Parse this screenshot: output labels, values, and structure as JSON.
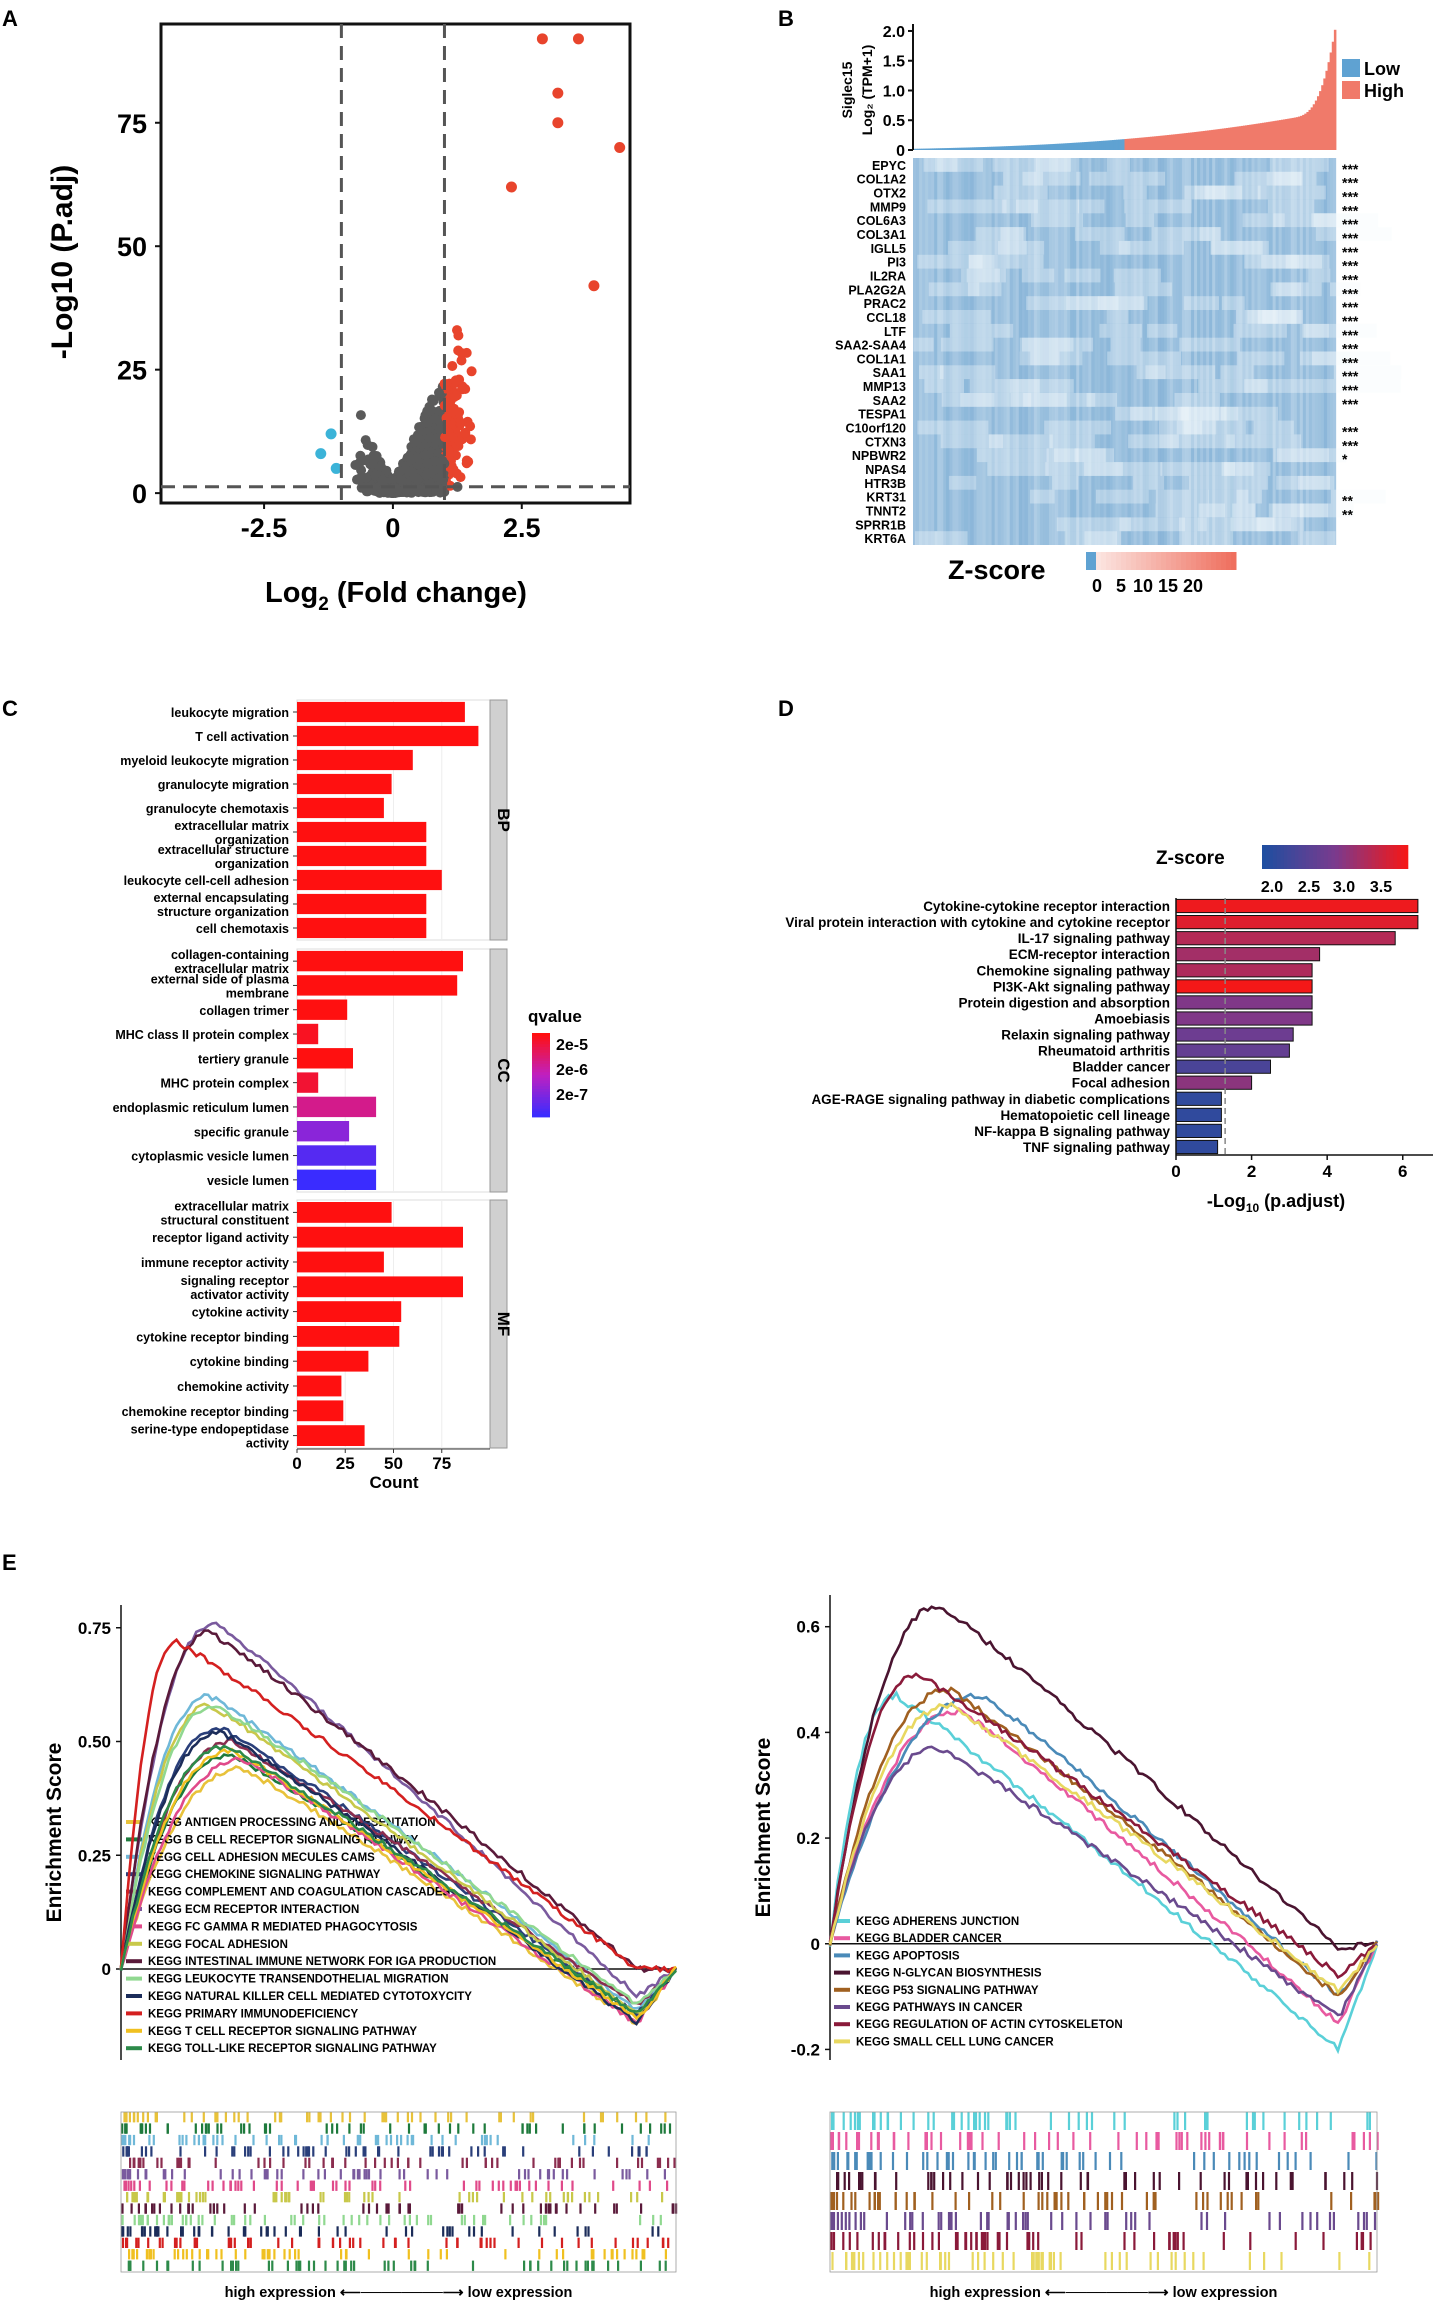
{
  "panel_labels": [
    "A",
    "B",
    "C",
    "D",
    "E"
  ],
  "colors": {
    "up": "#e8442c",
    "down": "#3bb3d8",
    "ns": "#5a5a5a",
    "low": "#5fa2d2",
    "high": "#f07a6a",
    "heat": "#8cb9da",
    "bar_red": "#f01414",
    "bar_blue": "#1a3d8a"
  },
  "chart_data": [
    {
      "id": "A",
      "type": "scatter",
      "title": "",
      "xlabel_main": "Log",
      "xlabel_sub": "2",
      "xlabel_rest": " (Fold change)",
      "ylabel": "-Log10 (P.adj)",
      "xlim": [
        -4.5,
        4.6
      ],
      "ylim": [
        -2,
        95
      ],
      "xticks": [
        -2.5,
        0,
        2.5
      ],
      "xtick_labels": [
        "-2.5",
        "0",
        "2.5"
      ],
      "yticks": [
        0,
        25,
        50,
        75
      ],
      "ytick_labels": [
        "0",
        "25",
        "50",
        "75"
      ],
      "thresholds": {
        "logfc": [
          -1,
          1
        ],
        "padj_line": 1.3
      },
      "highlight_points": [
        {
          "x": 2.9,
          "y": 92,
          "group": "up"
        },
        {
          "x": 3.6,
          "y": 92,
          "group": "up"
        },
        {
          "x": 3.2,
          "y": 81,
          "group": "up"
        },
        {
          "x": 3.2,
          "y": 75,
          "group": "up"
        },
        {
          "x": 4.4,
          "y": 70,
          "group": "up"
        },
        {
          "x": 2.3,
          "y": 62,
          "group": "up"
        },
        {
          "x": 3.9,
          "y": 42,
          "group": "up"
        },
        {
          "x": -1.2,
          "y": 12,
          "group": "down"
        },
        {
          "x": -1.4,
          "y": 8,
          "group": "down"
        },
        {
          "x": -1.1,
          "y": 5,
          "group": "down"
        }
      ]
    },
    {
      "id": "B",
      "type": "heatmap",
      "ylabel_line1": "Siglec15",
      "ylabel_line2": "Log₂ (TPM+1)",
      "yticks": [
        "0",
        "0.5",
        "1.0",
        "1.5",
        "2.0"
      ],
      "ytick_values": [
        0,
        0.5,
        1.0,
        1.5,
        2.0
      ],
      "legend": [
        "Low",
        "High"
      ],
      "genes": [
        "EPYC",
        "COL1A2",
        "OTX2",
        "MMP9",
        "COL6A3",
        "COL3A1",
        "IGLL5",
        "PI3",
        "IL2RA",
        "PLA2G2A",
        "PRAC2",
        "CCL18",
        "LTF",
        "SAA2-SAA4",
        "COL1A1",
        "SAA1",
        "MMP13",
        "SAA2",
        "TESPA1",
        "C10orf120",
        "CTXN3",
        "NPBWR2",
        "NPAS4",
        "HTR3B",
        "KRT31",
        "TNNT2",
        "SPRR1B",
        "KRT6A"
      ],
      "significance": [
        "***",
        "***",
        "***",
        "***",
        "***",
        "***",
        "***",
        "***",
        "***",
        "***",
        "***",
        "***",
        "***",
        "***",
        "***",
        "***",
        "***",
        "***",
        "",
        "***",
        "***",
        "*",
        "",
        "",
        "**",
        "**",
        "",
        ""
      ],
      "colorbar_title": "Z-score",
      "colorbar_ticks": [
        "0",
        "5",
        "10",
        "15",
        "20"
      ]
    },
    {
      "id": "C",
      "type": "bar",
      "xlabel": "Count",
      "xticks": [
        "0",
        "25",
        "50",
        "75"
      ],
      "xlim": [
        0,
        100
      ],
      "legend_title": "qvalue",
      "legend_ticks": [
        "2e-5",
        "2e-6",
        "2e-7"
      ],
      "facets": [
        {
          "name": "BP",
          "terms": [
            {
              "label": [
                "leukocyte migration"
              ],
              "count": 87,
              "q": 0.0
            },
            {
              "label": [
                "T cell activation"
              ],
              "count": 94,
              "q": 0.0
            },
            {
              "label": [
                "myeloid leukocyte migration"
              ],
              "count": 60,
              "q": 0.0
            },
            {
              "label": [
                "granulocyte migration"
              ],
              "count": 49,
              "q": 0.0
            },
            {
              "label": [
                "granulocyte chemotaxis"
              ],
              "count": 45,
              "q": 0.0
            },
            {
              "label": [
                "extracellular matrix",
                "organization"
              ],
              "count": 67,
              "q": 0.0
            },
            {
              "label": [
                "extracellular structure",
                "organization"
              ],
              "count": 67,
              "q": 0.0
            },
            {
              "label": [
                "leukocyte cell-cell adhesion"
              ],
              "count": 75,
              "q": 0.0
            },
            {
              "label": [
                "external encapsulating",
                "structure organization"
              ],
              "count": 67,
              "q": 0.0
            },
            {
              "label": [
                "cell chemotaxis"
              ],
              "count": 67,
              "q": 0.0
            }
          ]
        },
        {
          "name": "CC",
          "terms": [
            {
              "label": [
                "collagen-containing",
                "extracellular matrix"
              ],
              "count": 86,
              "q": 0.0
            },
            {
              "label": [
                "external side of plasma",
                "membrane"
              ],
              "count": 83,
              "q": 0.0
            },
            {
              "label": [
                "collagen trimer"
              ],
              "count": 26,
              "q": 0.0
            },
            {
              "label": [
                "MHC class II protein complex"
              ],
              "count": 11,
              "q": 0.05
            },
            {
              "label": [
                "tertiery granule"
              ],
              "count": 29,
              "q": 0.0
            },
            {
              "label": [
                "MHC protein complex"
              ],
              "count": 11,
              "q": 0.1
            },
            {
              "label": [
                "endoplasmic reticulum lumen"
              ],
              "count": 41,
              "q": 0.35
            },
            {
              "label": [
                "specific granule"
              ],
              "count": 27,
              "q": 0.7
            },
            {
              "label": [
                "cytoplasmic vesicle  lumen"
              ],
              "count": 41,
              "q": 0.9
            },
            {
              "label": [
                "vesicle lumen"
              ],
              "count": 41,
              "q": 1.0
            }
          ]
        },
        {
          "name": "MF",
          "terms": [
            {
              "label": [
                "extracellular matrix",
                "structural constituent"
              ],
              "count": 49,
              "q": 0.0
            },
            {
              "label": [
                "receptor ligand activity"
              ],
              "count": 86,
              "q": 0.0
            },
            {
              "label": [
                "immune receptor activity"
              ],
              "count": 45,
              "q": 0.0
            },
            {
              "label": [
                "signaling receptor",
                "activator activity"
              ],
              "count": 86,
              "q": 0.0
            },
            {
              "label": [
                "cytokine activity"
              ],
              "count": 54,
              "q": 0.0
            },
            {
              "label": [
                "cytokine receptor binding"
              ],
              "count": 53,
              "q": 0.0
            },
            {
              "label": [
                "cytokine binding"
              ],
              "count": 37,
              "q": 0.0
            },
            {
              "label": [
                "chemokine activity"
              ],
              "count": 23,
              "q": 0.0
            },
            {
              "label": [
                "chemokine receptor binding"
              ],
              "count": 24,
              "q": 0.0
            },
            {
              "label": [
                "serine-type endopeptidase",
                "activity"
              ],
              "count": 35,
              "q": 0.0
            }
          ]
        }
      ]
    },
    {
      "id": "D",
      "type": "bar",
      "xlabel_main": "-Log",
      "xlabel_sub": "10",
      "xlabel_rest": " (p.adjust)",
      "xticks": [
        "0",
        "2",
        "4",
        "6"
      ],
      "xlim": [
        0,
        6.8
      ],
      "threshold": 1.3,
      "colorbar_title": "Z-score",
      "colorbar_ticks": [
        "2.0",
        "2.5",
        "3.0",
        "3.5"
      ],
      "zlim": [
        1.8,
        3.9
      ],
      "terms": [
        {
          "label": "Cytokine-cytokine receptor interaction",
          "value": 6.4,
          "z": 3.85
        },
        {
          "label": "Viral protein interaction with cytokine and cytokine receptor",
          "value": 6.4,
          "z": 3.7
        },
        {
          "label": "IL-17 signaling pathway",
          "value": 5.8,
          "z": 3.35
        },
        {
          "label": "ECM-receptor interaction",
          "value": 3.8,
          "z": 3.2
        },
        {
          "label": "Chemokine signaling pathway",
          "value": 3.6,
          "z": 3.3
        },
        {
          "label": "PI3K-Akt signaling pathway",
          "value": 3.6,
          "z": 3.9
        },
        {
          "label": "Protein digestion and absorption",
          "value": 3.6,
          "z": 2.9
        },
        {
          "label": "Amoebiasis",
          "value": 3.6,
          "z": 2.9
        },
        {
          "label": "Relaxin signaling pathway",
          "value": 3.1,
          "z": 2.7
        },
        {
          "label": "Rheumatoid arthritis",
          "value": 3.0,
          "z": 2.6
        },
        {
          "label": "Bladder cancer",
          "value": 2.5,
          "z": 2.3
        },
        {
          "label": "Focal adhesion",
          "value": 2.0,
          "z": 3.0
        },
        {
          "label": "AGE-RAGE signaling pathway in diabetic complications",
          "value": 1.2,
          "z": 2.0
        },
        {
          "label": "Hematopoietic cell lineage",
          "value": 1.2,
          "z": 2.0
        },
        {
          "label": "NF-kappa B signaling pathway",
          "value": 1.2,
          "z": 2.0
        },
        {
          "label": "TNF signaling pathway",
          "value": 1.1,
          "z": 2.0
        }
      ]
    },
    {
      "id": "E-left",
      "type": "line",
      "ylabel": "Enrichment Score",
      "yticks": [
        "0",
        "0.25",
        "0.50",
        "0.75"
      ],
      "ytick_values": [
        0,
        0.25,
        0.5,
        0.75
      ],
      "ylim": [
        -0.2,
        0.8
      ],
      "axis_caption": "high expression ⟵────────⟶ low expression",
      "series": [
        {
          "name": "KEGG ANTIGEN PROCESSING AND PRESENTATION",
          "color": "#e8c23a",
          "peak": 0.44,
          "peakpos": 0.22,
          "min": -0.12
        },
        {
          "name": "KEGG B CELL RECEPTOR SIGNALING PATHWAY",
          "color": "#1e7a3c",
          "peak": 0.47,
          "peakpos": 0.2,
          "min": -0.1
        },
        {
          "name": "KEGG CELL ADHESION MECULES CAMS",
          "color": "#6fb8d8",
          "peak": 0.6,
          "peakpos": 0.16,
          "min": -0.09
        },
        {
          "name": "KEGG CHEMOKINE SIGNALING PATHWAY",
          "color": "#2a3f7a",
          "peak": 0.53,
          "peakpos": 0.18,
          "min": -0.1
        },
        {
          "name": "KEGG COMPLEMENT AND COAGULATION CASCADES",
          "color": "#8b2d4f",
          "peak": 0.5,
          "peakpos": 0.2,
          "min": -0.08
        },
        {
          "name": "KEGG ECM RECEPTOR INTERACTION",
          "color": "#7a5a9e",
          "peak": 0.76,
          "peakpos": 0.17,
          "min": -0.06
        },
        {
          "name": "KEGG FC GAMMA R MEDIATED PHAGOCYTOSIS",
          "color": "#e04a8a",
          "peak": 0.46,
          "peakpos": 0.22,
          "min": -0.12
        },
        {
          "name": "KEGG FOCAL ADHESION",
          "color": "#c8c84a",
          "peak": 0.58,
          "peakpos": 0.16,
          "min": -0.1
        },
        {
          "name": "KEGG INTESTINAL IMMUNE NETWORK FOR IGA PRODUCTION",
          "color": "#5a1a3a",
          "peak": 0.74,
          "peakpos": 0.16,
          "min": 0.0
        },
        {
          "name": "KEGG LEUKOCYTE TRANSENDOTHELIAL MIGRATION",
          "color": "#90d890",
          "peak": 0.58,
          "peakpos": 0.17,
          "min": -0.08
        },
        {
          "name": "KEGG NATURAL KILLER CELL MEDIATED CYTOTOXYCITY",
          "color": "#1c2d5a",
          "peak": 0.52,
          "peakpos": 0.18,
          "min": -0.12
        },
        {
          "name": "KEGG PRIMARY IMMUNODEFICIENCY",
          "color": "#d42020",
          "peak": 0.72,
          "peakpos": 0.1,
          "min": 0.0
        },
        {
          "name": "KEGG T CELL RECEPTOR SIGNALING PATHWAY",
          "color": "#f0c020",
          "peak": 0.48,
          "peakpos": 0.2,
          "min": -0.11
        },
        {
          "name": "KEGG TOLL-LIKE RECEPTOR SIGNALING PATHWAY",
          "color": "#2d8a4a",
          "peak": 0.49,
          "peakpos": 0.19,
          "min": -0.1
        }
      ]
    },
    {
      "id": "E-right",
      "type": "line",
      "ylabel": "Enrichment Score",
      "yticks": [
        "-0.2",
        "0",
        "0.2",
        "0.4",
        "0.6"
      ],
      "ytick_values": [
        -0.2,
        0,
        0.2,
        0.4,
        0.6
      ],
      "ylim": [
        -0.22,
        0.66
      ],
      "axis_caption": "high expression ⟵────────⟶ low expression",
      "series": [
        {
          "name": "KEGG ADHERENS JUNCTION",
          "color": "#5ad0d8",
          "peak": 0.47,
          "peakpos": 0.12,
          "min": -0.2
        },
        {
          "name": "KEGG BLADDER CANCER",
          "color": "#e85aa0",
          "peak": 0.44,
          "peakpos": 0.24,
          "min": -0.15
        },
        {
          "name": "KEGG APOPTOSIS",
          "color": "#4a8ab8",
          "peak": 0.47,
          "peakpos": 0.28,
          "min": -0.1
        },
        {
          "name": "KEGG N-GLYCAN BIOSYNTHESIS",
          "color": "#4a1430",
          "peak": 0.64,
          "peakpos": 0.2,
          "min": -0.01
        },
        {
          "name": "KEGG P53 SIGNALING PATHWAY",
          "color": "#a06020",
          "peak": 0.48,
          "peakpos": 0.22,
          "min": -0.1
        },
        {
          "name": "KEGG PATHWAYS IN CANCER",
          "color": "#6a4a8e",
          "peak": 0.37,
          "peakpos": 0.2,
          "min": -0.14
        },
        {
          "name": "KEGG REGULATION OF ACTIN CYTOSKELETON",
          "color": "#8a1a3a",
          "peak": 0.51,
          "peakpos": 0.16,
          "min": -0.06
        },
        {
          "name": "KEGG SMALL CELL LUNG CANCER",
          "color": "#e8d860",
          "peak": 0.45,
          "peakpos": 0.22,
          "min": -0.09
        }
      ]
    }
  ]
}
